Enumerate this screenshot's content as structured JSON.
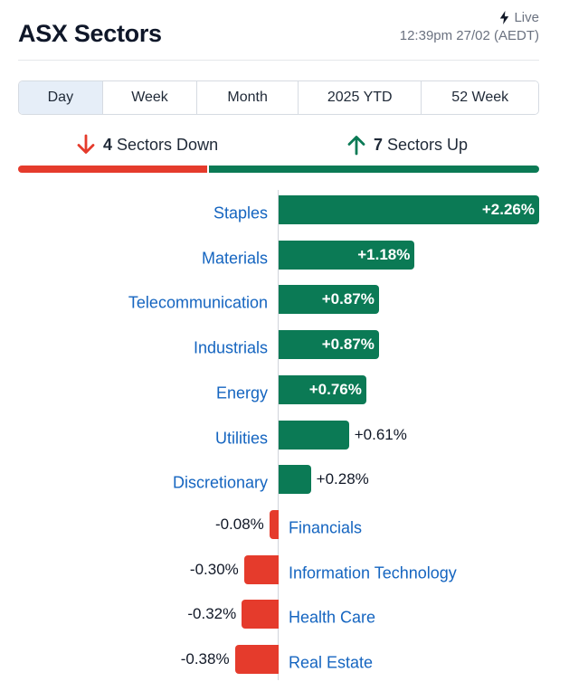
{
  "header": {
    "title": "ASX Sectors",
    "live_label": "Live",
    "timestamp": "12:39pm 27/02 (AEDT)"
  },
  "tabs": [
    {
      "label": "Day",
      "active": true
    },
    {
      "label": "Week",
      "active": false
    },
    {
      "label": "Month",
      "active": false
    },
    {
      "label": "2025 YTD",
      "active": false
    },
    {
      "label": "52 Week",
      "active": false
    }
  ],
  "summary": {
    "down_count": "4",
    "down_text": "Sectors Down",
    "up_count": "7",
    "up_text": "Sectors Up"
  },
  "colors": {
    "up": "#0b7a55",
    "down": "#e53b2c",
    "label": "#1565c0"
  },
  "chart_data": {
    "type": "bar",
    "orientation": "horizontal",
    "title": "ASX Sectors",
    "xlabel": "",
    "ylabel": "",
    "unit": "%",
    "categories": [
      "Staples",
      "Materials",
      "Telecommunication",
      "Industrials",
      "Energy",
      "Utilities",
      "Discretionary",
      "Financials",
      "Information Technology",
      "Health Care",
      "Real Estate"
    ],
    "values": [
      2.26,
      1.18,
      0.87,
      0.87,
      0.76,
      0.61,
      0.28,
      -0.08,
      -0.3,
      -0.32,
      -0.38
    ],
    "value_labels": [
      "+2.26%",
      "+1.18%",
      "+0.87%",
      "+0.87%",
      "+0.76%",
      "+0.61%",
      "+0.28%",
      "-0.08%",
      "-0.30%",
      "-0.32%",
      "-0.38%"
    ]
  }
}
